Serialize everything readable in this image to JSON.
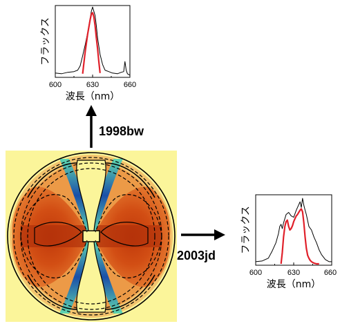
{
  "labels": {
    "top_arrow": "1998bw",
    "right_arrow": "2003jd"
  },
  "chart_data": [
    {
      "type": "line",
      "xlabel": "波長（nm）",
      "ylabel": "フラックス",
      "xlim": [
        600,
        660
      ],
      "xticks": [
        "600",
        "630",
        "660"
      ],
      "series": [
        {
          "color": "#000000",
          "x": [
            600,
            605,
            610,
            615,
            618,
            620,
            622,
            624,
            626,
            627,
            628,
            629,
            630,
            631,
            632,
            633,
            634,
            636,
            638,
            640,
            643,
            646,
            650,
            653,
            655,
            656,
            657,
            658,
            660
          ],
          "y": [
            0.06,
            0.05,
            0.07,
            0.08,
            0.1,
            0.16,
            0.3,
            0.45,
            0.62,
            0.72,
            0.82,
            0.92,
            0.98,
            0.92,
            0.86,
            0.72,
            0.55,
            0.32,
            0.18,
            0.1,
            0.08,
            0.06,
            0.05,
            0.07,
            0.08,
            0.22,
            0.1,
            0.05,
            0.03
          ]
        },
        {
          "color": "#e0202a",
          "x": [
            622,
            624,
            626,
            628,
            629,
            630,
            631,
            632,
            633,
            634,
            635,
            636
          ],
          "y": [
            0.05,
            0.35,
            0.6,
            0.8,
            0.88,
            0.9,
            0.84,
            0.72,
            0.55,
            0.4,
            0.22,
            0.06
          ]
        }
      ]
    },
    {
      "type": "line",
      "xlabel": "波長（nm）",
      "ylabel": "フラックス",
      "xlim": [
        600,
        660
      ],
      "xticks": [
        "600",
        "630",
        "660"
      ],
      "series": [
        {
          "color": "#000000",
          "x": [
            600,
            605,
            610,
            613,
            616,
            618,
            619,
            620,
            621,
            622,
            624,
            626,
            628,
            630,
            632,
            634,
            635,
            636,
            637,
            638,
            639,
            640,
            642,
            644,
            646,
            648,
            650,
            652,
            655,
            658,
            660
          ],
          "y": [
            0.05,
            0.06,
            0.1,
            0.2,
            0.32,
            0.45,
            0.55,
            0.58,
            0.52,
            0.6,
            0.72,
            0.75,
            0.7,
            0.68,
            0.78,
            0.86,
            0.9,
            0.82,
            0.95,
            0.85,
            0.78,
            0.72,
            0.55,
            0.5,
            0.4,
            0.32,
            0.22,
            0.15,
            0.08,
            0.05,
            0.05
          ]
        },
        {
          "color": "#e0202a",
          "x": [
            620,
            621,
            622,
            623,
            624,
            625,
            626,
            627,
            628,
            629,
            630,
            631,
            632,
            633,
            634,
            635,
            636,
            637,
            638,
            639,
            640,
            641,
            642,
            643,
            644,
            646,
            648,
            650
          ],
          "y": [
            0.02,
            0.18,
            0.4,
            0.55,
            0.62,
            0.64,
            0.55,
            0.5,
            0.52,
            0.56,
            0.62,
            0.66,
            0.7,
            0.72,
            0.75,
            0.78,
            0.8,
            0.76,
            0.6,
            0.4,
            0.24,
            0.14,
            0.1,
            0.07,
            0.05,
            0.03,
            0.02,
            0.02
          ]
        }
      ]
    }
  ]
}
